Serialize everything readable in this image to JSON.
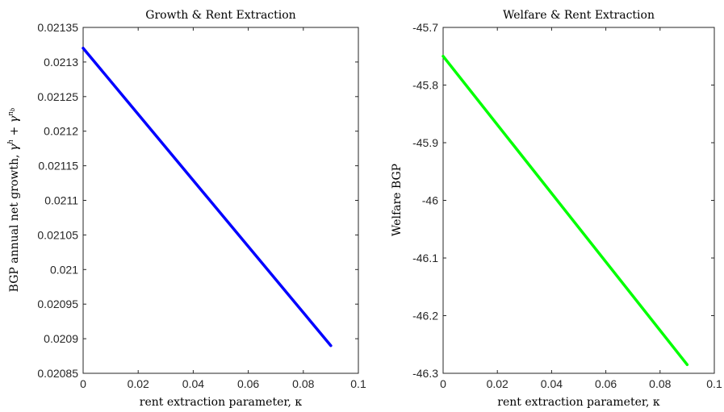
{
  "chart_data": [
    {
      "type": "line",
      "title": "Growth & Rent Extraction",
      "xlabel": "rent extraction parameter, κ",
      "ylabel_main": "BGP annual net growth, ",
      "ylabel_math": {
        "base1": "γ",
        "sup1": "h",
        "plus": " + ",
        "base2": "γ",
        "sup2": "n",
        "sub2": "b"
      },
      "xlim": [
        0,
        0.1
      ],
      "ylim": [
        0.02085,
        0.02135
      ],
      "xticks": [
        0,
        0.02,
        0.04,
        0.06,
        0.08,
        0.1
      ],
      "xtick_labels": [
        "0",
        "0.02",
        "0.04",
        "0.06",
        "0.08",
        "0.1"
      ],
      "yticks": [
        0.02085,
        0.0209,
        0.02095,
        0.021,
        0.02105,
        0.0211,
        0.02115,
        0.0212,
        0.02125,
        0.0213,
        0.02135
      ],
      "ytick_labels": [
        "0.02085",
        "0.0209",
        "0.02095",
        "0.021",
        "0.02105",
        "0.0211",
        "0.02115",
        "0.0212",
        "0.02125",
        "0.0213",
        "0.02135"
      ],
      "grid": false,
      "series": [
        {
          "color": "#0000ff",
          "x": [
            0,
            0.09
          ],
          "y": [
            0.02132,
            0.02089
          ]
        }
      ]
    },
    {
      "type": "line",
      "title": "Welfare & Rent Extraction",
      "xlabel": "rent extraction parameter, κ",
      "ylabel": "Welfare BGP",
      "xlim": [
        0,
        0.1
      ],
      "ylim": [
        -46.3,
        -45.7
      ],
      "xticks": [
        0,
        0.02,
        0.04,
        0.06,
        0.08,
        0.1
      ],
      "xtick_labels": [
        "0",
        "0.02",
        "0.04",
        "0.06",
        "0.08",
        "0.1"
      ],
      "yticks": [
        -46.3,
        -46.2,
        -46.1,
        -46,
        -45.9,
        -45.8,
        -45.7
      ],
      "ytick_labels": [
        "-46.3",
        "-46.2",
        "-46.1",
        "-46",
        "-45.9",
        "-45.8",
        "-45.7"
      ],
      "grid": false,
      "series": [
        {
          "color": "#00ff00",
          "x": [
            0,
            0.09
          ],
          "y": [
            -45.75,
            -46.285
          ]
        }
      ]
    }
  ]
}
